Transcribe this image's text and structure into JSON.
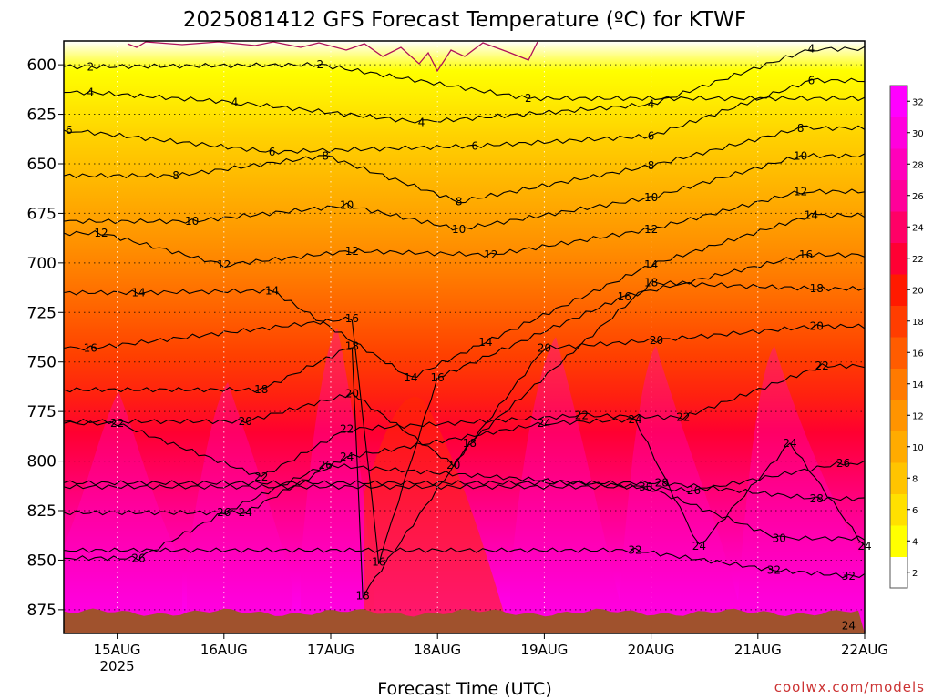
{
  "title": "2025081412 GFS Forecast Temperature (ºC) for KTWF",
  "xlabel": "Forecast Time (UTC)",
  "watermark": "coolwx.com/models",
  "chart_data": {
    "type": "heatmap",
    "title": "2025081412 GFS Forecast Temperature (ºC) for KTWF",
    "xlabel": "Forecast Time (UTC)",
    "ylabel": "",
    "x_ticks": [
      {
        "label": "15AUG",
        "sub": "2025",
        "day": 15
      },
      {
        "label": "16AUG",
        "sub": "",
        "day": 16
      },
      {
        "label": "17AUG",
        "sub": "",
        "day": 17
      },
      {
        "label": "18AUG",
        "sub": "",
        "day": 18
      },
      {
        "label": "19AUG",
        "sub": "",
        "day": 19
      },
      {
        "label": "20AUG",
        "sub": "",
        "day": 20
      },
      {
        "label": "21AUG",
        "sub": "",
        "day": 21
      },
      {
        "label": "22AUG",
        "sub": "",
        "day": 22
      }
    ],
    "xlim_days": [
      14.5,
      22.0
    ],
    "y_ticks": [
      600,
      625,
      650,
      675,
      700,
      725,
      750,
      775,
      800,
      825,
      850,
      875
    ],
    "ylim_hpa": [
      588,
      887
    ],
    "grid": true,
    "colorbar": {
      "labels": [
        "2",
        "4",
        "6",
        "8",
        "10",
        "12",
        "14",
        "16",
        "18",
        "20",
        "22",
        "24",
        "26",
        "28",
        "30",
        "32"
      ],
      "colors": [
        "#ffffff",
        "#ffff00",
        "#ffe000",
        "#ffc400",
        "#ffab00",
        "#ff9400",
        "#ff7a00",
        "#ff5c00",
        "#ff3d00",
        "#ff1a00",
        "#ff0033",
        "#ff0066",
        "#ff0099",
        "#ff00bb",
        "#ff00dd",
        "#ff00ff"
      ]
    },
    "contour_levels": [
      2,
      4,
      6,
      8,
      10,
      12,
      14,
      16,
      18,
      20,
      22,
      24,
      26,
      28,
      30,
      32
    ],
    "contour_labels": [
      {
        "v": 2,
        "day": 14.75,
        "p": 601
      },
      {
        "v": 2,
        "day": 16.9,
        "p": 600
      },
      {
        "v": 2,
        "day": 18.85,
        "p": 617
      },
      {
        "v": 4,
        "day": 14.75,
        "p": 614
      },
      {
        "v": 4,
        "day": 16.1,
        "p": 619
      },
      {
        "v": 4,
        "day": 17.85,
        "p": 629
      },
      {
        "v": 4,
        "day": 20.0,
        "p": 620
      },
      {
        "v": 4,
        "day": 21.5,
        "p": 592
      },
      {
        "v": 6,
        "day": 14.55,
        "p": 633
      },
      {
        "v": 6,
        "day": 16.45,
        "p": 644
      },
      {
        "v": 6,
        "day": 18.35,
        "p": 641
      },
      {
        "v": 6,
        "day": 20.0,
        "p": 636
      },
      {
        "v": 6,
        "day": 21.5,
        "p": 608
      },
      {
        "v": 8,
        "day": 15.55,
        "p": 656
      },
      {
        "v": 8,
        "day": 16.95,
        "p": 646
      },
      {
        "v": 8,
        "day": 18.2,
        "p": 669
      },
      {
        "v": 8,
        "day": 20.0,
        "p": 651
      },
      {
        "v": 8,
        "day": 21.4,
        "p": 632
      },
      {
        "v": 10,
        "day": 15.7,
        "p": 679
      },
      {
        "v": 10,
        "day": 17.15,
        "p": 671
      },
      {
        "v": 10,
        "day": 18.2,
        "p": 683
      },
      {
        "v": 10,
        "day": 20.0,
        "p": 667
      },
      {
        "v": 10,
        "day": 21.4,
        "p": 646
      },
      {
        "v": 12,
        "day": 14.85,
        "p": 685
      },
      {
        "v": 12,
        "day": 16.0,
        "p": 701
      },
      {
        "v": 12,
        "day": 17.2,
        "p": 694
      },
      {
        "v": 12,
        "day": 18.5,
        "p": 696
      },
      {
        "v": 12,
        "day": 20.0,
        "p": 683
      },
      {
        "v": 12,
        "day": 21.4,
        "p": 664
      },
      {
        "v": 14,
        "day": 15.2,
        "p": 715
      },
      {
        "v": 14,
        "day": 16.45,
        "p": 714
      },
      {
        "v": 14,
        "day": 17.75,
        "p": 758
      },
      {
        "v": 14,
        "day": 18.45,
        "p": 740
      },
      {
        "v": 14,
        "day": 20.0,
        "p": 701
      },
      {
        "v": 14,
        "day": 21.5,
        "p": 676
      },
      {
        "v": 16,
        "day": 14.75,
        "p": 743
      },
      {
        "v": 16,
        "day": 17.2,
        "p": 728
      },
      {
        "v": 16,
        "day": 18.0,
        "p": 758
      },
      {
        "v": 16,
        "day": 17.45,
        "p": 851
      },
      {
        "v": 16,
        "day": 19.75,
        "p": 717
      },
      {
        "v": 16,
        "day": 21.45,
        "p": 696
      },
      {
        "v": 18,
        "day": 16.35,
        "p": 764
      },
      {
        "v": 18,
        "day": 17.2,
        "p": 742
      },
      {
        "v": 18,
        "day": 18.3,
        "p": 791
      },
      {
        "v": 18,
        "day": 17.3,
        "p": 868
      },
      {
        "v": 18,
        "day": 20.0,
        "p": 710
      },
      {
        "v": 18,
        "day": 21.55,
        "p": 713
      },
      {
        "v": 20,
        "day": 16.2,
        "p": 780
      },
      {
        "v": 20,
        "day": 17.2,
        "p": 766
      },
      {
        "v": 20,
        "day": 18.15,
        "p": 802
      },
      {
        "v": 20,
        "day": 19.0,
        "p": 743
      },
      {
        "v": 20,
        "day": 20.05,
        "p": 739
      },
      {
        "v": 20,
        "day": 21.55,
        "p": 732
      },
      {
        "v": 22,
        "day": 15.0,
        "p": 781
      },
      {
        "v": 22,
        "day": 16.35,
        "p": 808
      },
      {
        "v": 22,
        "day": 17.15,
        "p": 784
      },
      {
        "v": 22,
        "day": 19.35,
        "p": 777
      },
      {
        "v": 22,
        "day": 20.3,
        "p": 778
      },
      {
        "v": 22,
        "day": 21.6,
        "p": 752
      },
      {
        "v": 24,
        "day": 16.2,
        "p": 826
      },
      {
        "v": 24,
        "day": 17.15,
        "p": 798
      },
      {
        "v": 24,
        "day": 19.0,
        "p": 781
      },
      {
        "v": 24,
        "day": 19.85,
        "p": 779
      },
      {
        "v": 24,
        "day": 20.45,
        "p": 843
      },
      {
        "v": 24,
        "day": 21.3,
        "p": 791
      },
      {
        "v": 24,
        "day": 22.0,
        "p": 843
      },
      {
        "v": 24,
        "day": 21.85,
        "p": 883
      },
      {
        "v": 26,
        "day": 15.2,
        "p": 849
      },
      {
        "v": 26,
        "day": 16.0,
        "p": 826
      },
      {
        "v": 26,
        "day": 16.95,
        "p": 802
      },
      {
        "v": 26,
        "day": 20.4,
        "p": 815
      },
      {
        "v": 26,
        "day": 21.8,
        "p": 801
      },
      {
        "v": 28,
        "day": 20.1,
        "p": 811
      },
      {
        "v": 28,
        "day": 21.55,
        "p": 819
      },
      {
        "v": 30,
        "day": 19.95,
        "p": 813
      },
      {
        "v": 30,
        "day": 21.2,
        "p": 839
      },
      {
        "v": 32,
        "day": 19.85,
        "p": 845
      },
      {
        "v": 32,
        "day": 21.15,
        "p": 855
      },
      {
        "v": 32,
        "day": 21.85,
        "p": 858
      }
    ]
  }
}
